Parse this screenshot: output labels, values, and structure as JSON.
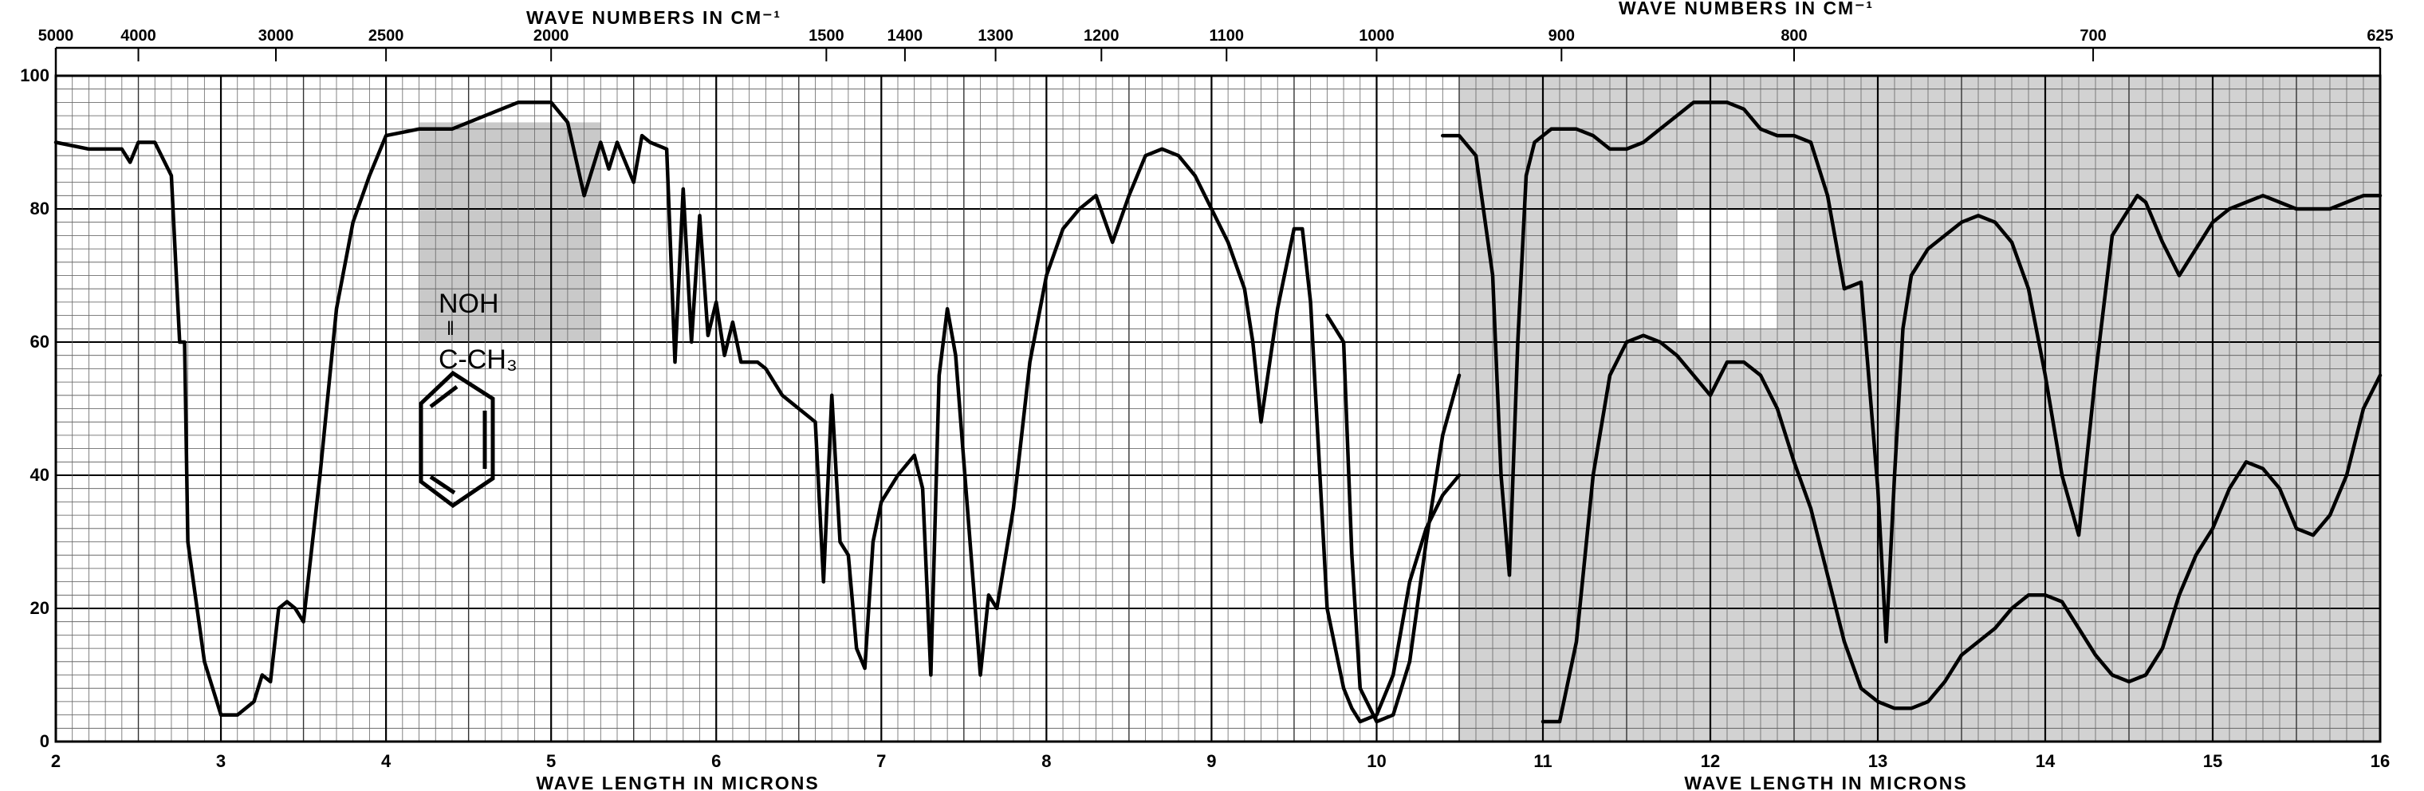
{
  "chart_data": {
    "type": "line",
    "title": "",
    "top_axis_label_left": "WAVE NUMBERS IN CM⁻¹",
    "top_axis_label_right": "WAVE NUMBERS IN CM⁻¹",
    "bottom_axis_label_left": "WAVE LENGTH IN MICRONS",
    "bottom_axis_label_right": "WAVE LENGTH IN MICRONS",
    "xlabel": "WAVE LENGTH IN MICRONS",
    "ylabel": "",
    "xlim": [
      2,
      16
    ],
    "ylim": [
      0,
      100
    ],
    "grid": true,
    "x_ticks": [
      "2",
      "3",
      "4",
      "5",
      "6",
      "7",
      "8",
      "9",
      "10",
      "11",
      "12",
      "13",
      "14",
      "15",
      "16"
    ],
    "y_ticks": [
      "0",
      "20",
      "40",
      "60",
      "80",
      "100"
    ],
    "top_ticks": [
      {
        "label": "5000",
        "um": 2.0
      },
      {
        "label": "4000",
        "um": 2.5
      },
      {
        "label": "3000",
        "um": 3.333
      },
      {
        "label": "2500",
        "um": 4.0
      },
      {
        "label": "2000",
        "um": 5.0
      },
      {
        "label": "1500",
        "um": 6.667
      },
      {
        "label": "1400",
        "um": 7.143
      },
      {
        "label": "1300",
        "um": 7.692
      },
      {
        "label": "1200",
        "um": 8.333
      },
      {
        "label": "1100",
        "um": 9.091
      },
      {
        "label": "1000",
        "um": 10.0
      },
      {
        "label": "900",
        "um": 11.111
      },
      {
        "label": "800",
        "um": 12.5
      },
      {
        "label": "700",
        "um": 14.286
      },
      {
        "label": "625",
        "um": 16.0
      }
    ],
    "compound": {
      "line1": "NOH",
      "line2": "‖",
      "line3": "C-CH₃"
    },
    "series": [
      {
        "name": "",
        "x": [
          2.0,
          2.2,
          2.4,
          2.45,
          2.5,
          2.6,
          2.7,
          2.75,
          2.78,
          2.8,
          2.9,
          3.0,
          3.1,
          3.2,
          3.25,
          3.3,
          3.35,
          3.4,
          3.45,
          3.5,
          3.6,
          3.7,
          3.8,
          3.9,
          4.0,
          4.2,
          4.4,
          4.6,
          4.8,
          5.0,
          5.1,
          5.2,
          5.3,
          5.35,
          5.4,
          5.5,
          5.55,
          5.6,
          5.7,
          5.75,
          5.8,
          5.85,
          5.9,
          5.95,
          6.0,
          6.05,
          6.1,
          6.15,
          6.2,
          6.25,
          6.3,
          6.35,
          6.4,
          6.5,
          6.6,
          6.65,
          6.7,
          6.75,
          6.8,
          6.85,
          6.9,
          6.95,
          7.0,
          7.1,
          7.2,
          7.25,
          7.3,
          7.35,
          7.4,
          7.45,
          7.5,
          7.6,
          7.65,
          7.7,
          7.8,
          7.9,
          8.0,
          8.1,
          8.2,
          8.3,
          8.4,
          8.5,
          8.6,
          8.7,
          8.8,
          8.9,
          9.0,
          9.1,
          9.2,
          9.25,
          9.3,
          9.4,
          9.5,
          9.55,
          9.6,
          9.7,
          9.75,
          9.8,
          9.85,
          9.9,
          10.0,
          10.1,
          10.2,
          10.3,
          10.4,
          10.5
        ],
        "y": [
          90,
          89,
          89,
          87,
          90,
          90,
          85,
          60,
          60,
          30,
          12,
          4,
          4,
          6,
          10,
          9,
          20,
          21,
          20,
          18,
          40,
          65,
          78,
          85,
          91,
          92,
          92,
          94,
          96,
          96,
          93,
          82,
          90,
          86,
          90,
          84,
          91,
          90,
          89,
          57,
          83,
          60,
          79,
          61,
          66,
          58,
          63,
          57,
          57,
          57,
          56,
          54,
          52,
          50,
          48,
          24,
          52,
          30,
          28,
          14,
          11,
          30,
          36,
          40,
          43,
          38,
          10,
          55,
          65,
          58,
          42,
          10,
          22,
          20,
          35,
          57,
          70,
          77,
          80,
          82,
          75,
          82,
          88,
          89,
          88,
          85,
          80,
          75,
          68,
          60,
          48,
          65,
          77,
          77,
          66,
          20,
          14,
          8,
          5,
          3,
          4,
          10,
          24,
          32,
          37,
          40
        ]
      },
      {
        "name": "",
        "x": [
          9.7,
          9.8,
          9.85,
          9.9,
          10.0,
          10.1,
          10.2,
          10.3,
          10.4,
          10.5
        ],
        "y": [
          64,
          60,
          28,
          8,
          3,
          4,
          12,
          30,
          46,
          55
        ]
      },
      {
        "name": "",
        "x": [
          10.4,
          10.5,
          10.6,
          10.7,
          10.75,
          10.8,
          10.85,
          10.9,
          10.95,
          11.0,
          11.05,
          11.1,
          11.2,
          11.3,
          11.4,
          11.5,
          11.6,
          11.7,
          11.8,
          11.9,
          12.0,
          12.1,
          12.2,
          12.3,
          12.4,
          12.5,
          12.6,
          12.7,
          12.8,
          12.9,
          13.0,
          13.05,
          13.1,
          13.15,
          13.2,
          13.25,
          13.3,
          13.4,
          13.5,
          13.6,
          13.7,
          13.8,
          13.9,
          14.0,
          14.1,
          14.2,
          14.3,
          14.4,
          14.5,
          14.55,
          14.6,
          14.7,
          14.8,
          14.9,
          15.0,
          15.1,
          15.2,
          15.3,
          15.4,
          15.5,
          15.6,
          15.7,
          15.8,
          15.9,
          16.0
        ],
        "y": [
          91,
          91,
          88,
          70,
          40,
          25,
          60,
          85,
          90,
          91,
          92,
          92,
          92,
          91,
          89,
          89,
          90,
          92,
          94,
          96,
          96,
          96,
          95,
          92,
          91,
          91,
          90,
          82,
          68,
          69,
          38,
          15,
          40,
          62,
          70,
          72,
          74,
          76,
          78,
          79,
          78,
          75,
          68,
          55,
          40,
          31,
          55,
          76,
          80,
          82,
          81,
          75,
          70,
          74,
          78,
          80,
          81,
          82,
          81,
          80,
          80,
          80,
          81,
          82,
          82
        ]
      },
      {
        "name": "",
        "x": [
          11.0,
          11.1,
          11.2,
          11.3,
          11.4,
          11.5,
          11.6,
          11.7,
          11.8,
          11.9,
          12.0,
          12.1,
          12.2,
          12.3,
          12.4,
          12.5,
          12.6,
          12.7,
          12.8,
          12.9,
          13.0,
          13.1,
          13.2,
          13.3,
          13.4,
          13.5,
          13.6,
          13.7,
          13.8,
          13.9,
          14.0,
          14.1,
          14.2,
          14.3,
          14.4,
          14.5,
          14.6,
          14.7,
          14.8,
          14.9,
          15.0,
          15.1,
          15.2,
          15.3,
          15.4,
          15.5,
          15.6,
          15.7,
          15.8,
          15.9,
          16.0
        ],
        "y": [
          3,
          3,
          15,
          40,
          55,
          60,
          61,
          60,
          58,
          55,
          52,
          57,
          57,
          55,
          50,
          42,
          35,
          25,
          15,
          8,
          6,
          5,
          5,
          6,
          9,
          13,
          15,
          17,
          20,
          22,
          22,
          21,
          17,
          13,
          10,
          9,
          10,
          14,
          22,
          28,
          32,
          38,
          42,
          41,
          38,
          32,
          31,
          34,
          40,
          50,
          55
        ]
      }
    ]
  }
}
